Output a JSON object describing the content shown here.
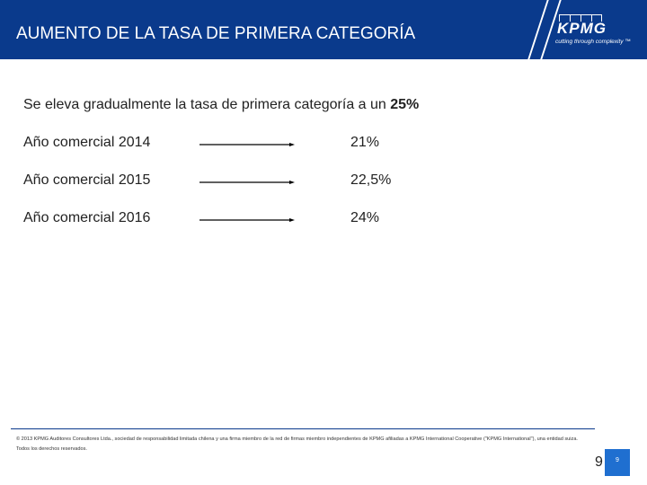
{
  "header": {
    "title": "AUMENTO DE LA TASA DE PRIMERA CATEGORÍA",
    "logo": "KPMG",
    "tagline": "cutting through complexity ™"
  },
  "intro": {
    "text": "Se eleva gradualmente la tasa de primera categoría a un ",
    "emphasis": "25%"
  },
  "rows": [
    {
      "label": "Año comercial 2014",
      "value": "21%"
    },
    {
      "label": "Año comercial 2015",
      "value": "22,5%"
    },
    {
      "label": "Año comercial 2016",
      "value": "24%"
    }
  ],
  "footer": {
    "text": "© 2013 KPMG Auditores Consultores Ltda., sociedad de responsabilidad limitada chilena y una firma miembro de la red de firmas miembro independientes de KPMG afiliadas a KPMG International Cooperative (\"KPMG International\"), una entidad suiza. Todos los derechos reservados.",
    "page": "9",
    "page_badge": "9"
  }
}
